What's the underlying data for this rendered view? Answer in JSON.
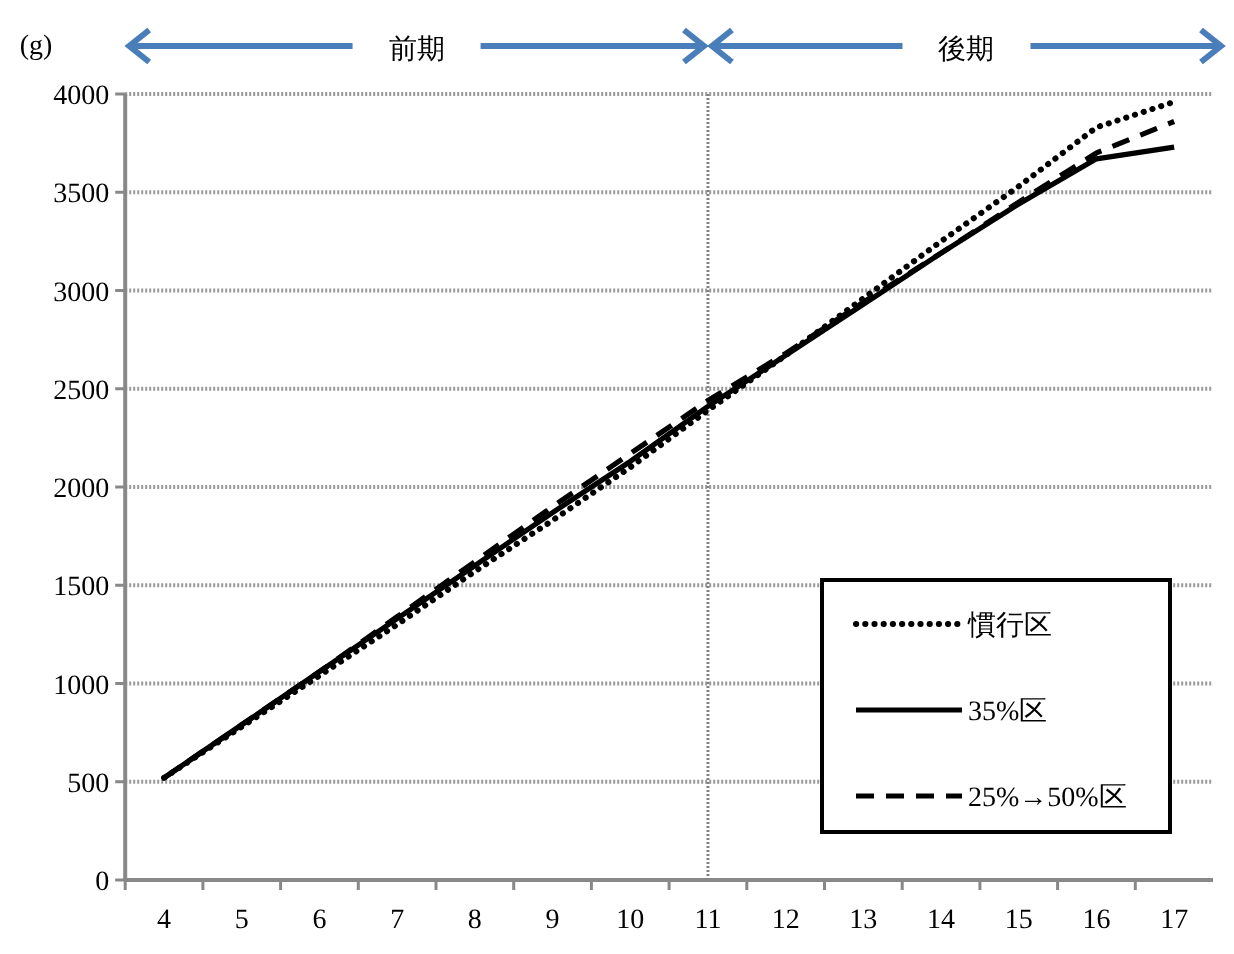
{
  "chart_data": {
    "type": "line",
    "ylabel": "(g)",
    "categories": [
      "4",
      "5",
      "6",
      "7",
      "8",
      "9",
      "10",
      "11",
      "12",
      "13",
      "14",
      "15",
      "16",
      "17"
    ],
    "ylim": [
      0,
      4000
    ],
    "yticks": [
      0,
      500,
      1000,
      1500,
      2000,
      2500,
      3000,
      3500,
      4000
    ],
    "grid": "y",
    "legend": "bottom right",
    "marker": "none",
    "series": [
      {
        "name": "慣行区",
        "color": "#000000",
        "line_style": "dotted",
        "values": [
          520,
          780,
          1040,
          1300,
          1570,
          1830,
          2100,
          2390,
          2670,
          2960,
          3250,
          3530,
          3830,
          3960
        ]
      },
      {
        "name": "35%区",
        "color": "#000000",
        "line_style": "solid",
        "values": [
          520,
          790,
          1060,
          1330,
          1600,
          1870,
          2130,
          2410,
          2670,
          2930,
          3190,
          3440,
          3670,
          3730
        ]
      },
      {
        "name": "25%→50%区",
        "color": "#000000",
        "line_style": "dashed",
        "values": [
          520,
          790,
          1060,
          1340,
          1620,
          1900,
          2170,
          2440,
          2680,
          2940,
          3190,
          3450,
          3700,
          3860
        ]
      }
    ],
    "ref_lines": [
      {
        "axis": "x",
        "value": "11",
        "color": "#808080",
        "line_style": "dotted"
      }
    ],
    "annotations": [
      "前期",
      "後期"
    ]
  }
}
